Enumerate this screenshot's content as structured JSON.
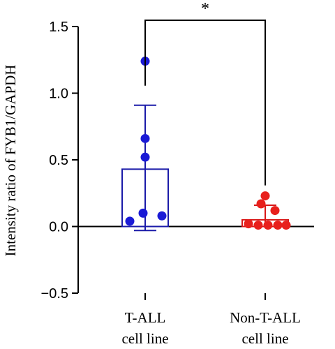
{
  "chart_data": {
    "type": "bar",
    "ylabel": "Intensity ratio of FYB1/GAPDH",
    "ylim": [
      -0.5,
      1.5
    ],
    "yticks": [
      -0.5,
      0.0,
      0.5,
      1.0,
      1.5
    ],
    "ytick_labels": [
      "−0.5",
      "0.0",
      "0.5",
      "1.0",
      "1.5"
    ],
    "categories": [
      {
        "line1": "T-ALL",
        "line2": "cell line"
      },
      {
        "line1": "Non-T-ALL",
        "line2": "cell line"
      }
    ],
    "series": [
      {
        "mean": 0.43,
        "error_upper": 0.91,
        "error_lower": -0.03,
        "points": [
          1.24,
          0.66,
          0.52,
          0.1,
          0.08,
          0.04
        ],
        "color": "#1a1ad6",
        "bar_color": "#1a1aa8"
      },
      {
        "mean": 0.05,
        "error_upper": 0.16,
        "error_lower": 0.0,
        "points": [
          0.23,
          0.17,
          0.12,
          0.02,
          0.01,
          0.01,
          0.01,
          0.01
        ],
        "color": "#e8201c",
        "bar_color": "#d81818"
      }
    ],
    "significance": {
      "label": "*",
      "between": [
        0,
        1
      ]
    },
    "grid": false
  }
}
